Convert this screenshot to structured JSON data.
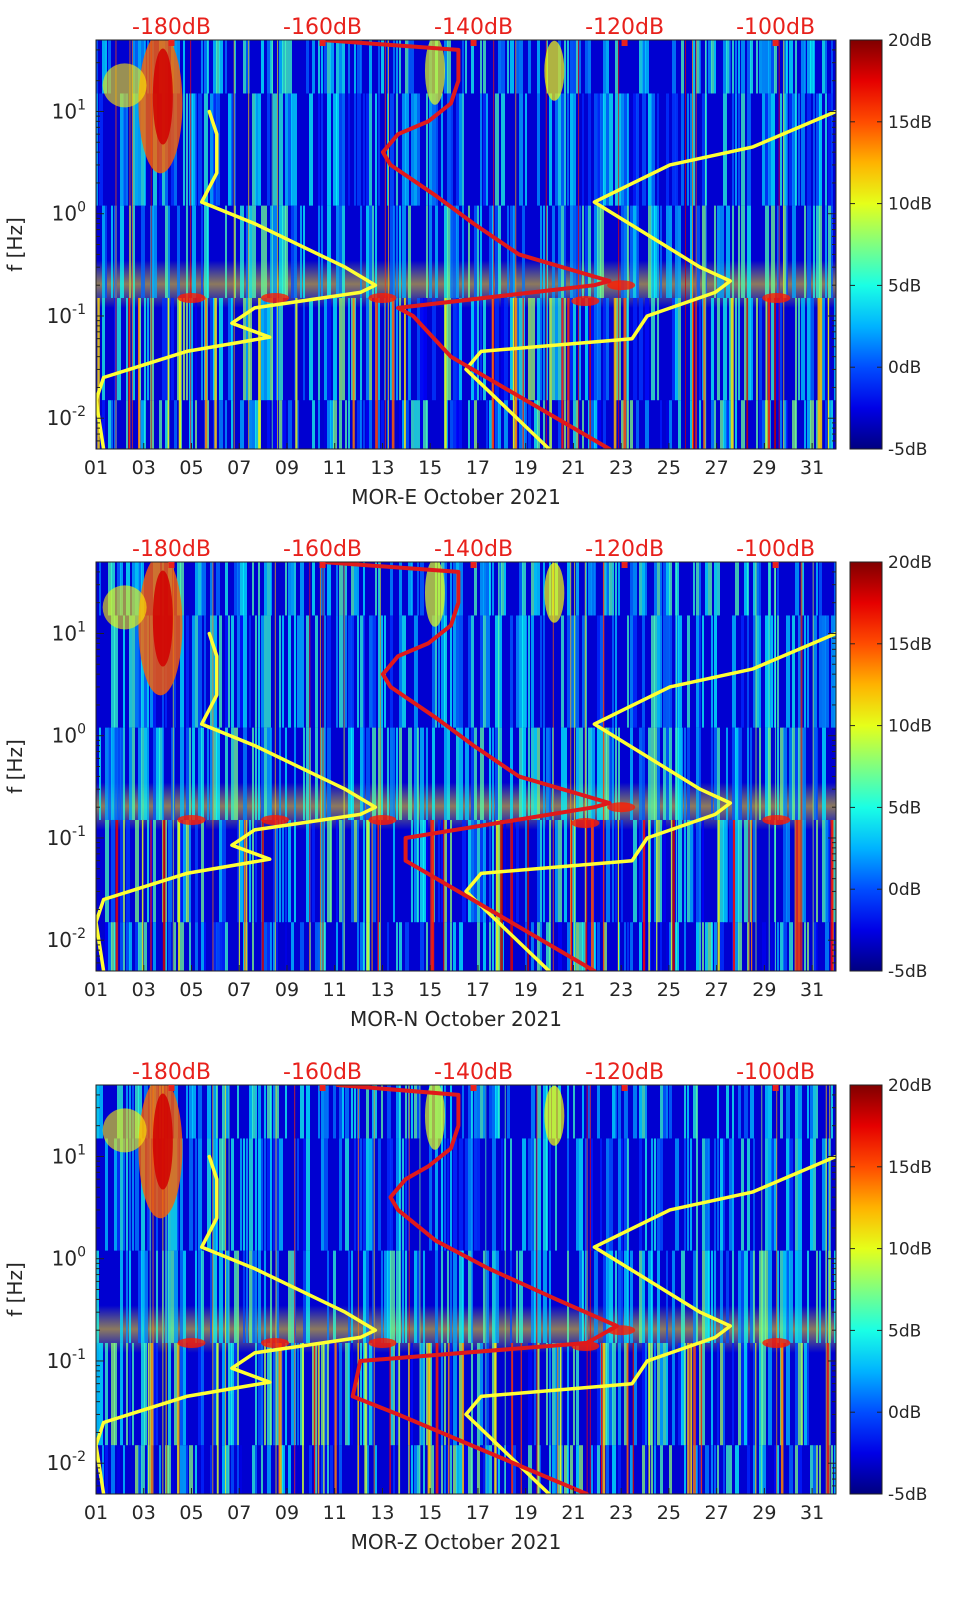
{
  "chart_data": [
    {
      "type": "heatmap",
      "title": "",
      "xlabel": "MOR-E October 2021",
      "ylabel": "f [Hz]",
      "x_ticks": [
        "01",
        "03",
        "05",
        "07",
        "09",
        "11",
        "13",
        "15",
        "17",
        "19",
        "21",
        "23",
        "25",
        "27",
        "29",
        "31"
      ],
      "xlim": [
        1,
        32
      ],
      "yscale": "log",
      "ylim": [
        0.005,
        50
      ],
      "y_ticks": [
        {
          "value": 0.01,
          "base": "10",
          "exp": "-2"
        },
        {
          "value": 0.1,
          "base": "10",
          "exp": "-1"
        },
        {
          "value": 1,
          "base": "10",
          "exp": "0"
        },
        {
          "value": 10,
          "base": "10",
          "exp": "1"
        }
      ],
      "colorbar": {
        "range": [
          -5,
          20
        ],
        "ticks": [
          "20dB",
          "15dB",
          "10dB",
          "5dB",
          "0dB",
          "-5dB"
        ]
      },
      "top_axis": {
        "label_color": "#e8211c",
        "ticks": [
          "-180dB",
          "-160dB",
          "-140dB",
          "-120dB",
          "-100dB"
        ],
        "range": [
          -190,
          -92
        ]
      },
      "series": [
        {
          "name": "yellow-low-noise-model",
          "color": "#ffff33",
          "points": [
            [
              -189,
              0.005
            ],
            [
              -190,
              0.015
            ],
            [
              -189,
              0.025
            ],
            [
              -178,
              0.045
            ],
            [
              -167,
              0.062
            ],
            [
              -172,
              0.085
            ],
            [
              -169,
              0.12
            ],
            [
              -155,
              0.17
            ],
            [
              -153,
              0.2
            ],
            [
              -157,
              0.3
            ],
            [
              -169,
              0.8
            ],
            [
              -176,
              1.3
            ],
            [
              -174,
              2.5
            ],
            [
              -174,
              6
            ],
            [
              -175,
              10
            ]
          ]
        },
        {
          "name": "yellow-high-noise-model",
          "color": "#ffff33",
          "points": [
            [
              -130,
              0.005
            ],
            [
              -141,
              0.03
            ],
            [
              -139,
              0.045
            ],
            [
              -119,
              0.06
            ],
            [
              -117,
              0.1
            ],
            [
              -108,
              0.17
            ],
            [
              -106,
              0.22
            ],
            [
              -110,
              0.3
            ],
            [
              -124,
              1.3
            ],
            [
              -114,
              3
            ],
            [
              -103,
              4.5
            ],
            [
              -92,
              10
            ]
          ]
        },
        {
          "name": "red-station-noise-curve",
          "color": "#e0191b",
          "points": [
            [
              -122,
              0.005
            ],
            [
              -143,
              0.04
            ],
            [
              -148,
              0.1
            ],
            [
              -150,
              0.12
            ],
            [
              -124,
              0.2
            ],
            [
              -122,
              0.22
            ],
            [
              -134,
              0.4
            ],
            [
              -140,
              0.8
            ],
            [
              -145,
              1.5
            ],
            [
              -151,
              3
            ],
            [
              -152,
              4
            ],
            [
              -150,
              6
            ],
            [
              -146,
              8
            ],
            [
              -143,
              12
            ],
            [
              -142,
              20
            ],
            [
              -142,
              40
            ],
            [
              -160,
              50
            ]
          ]
        }
      ]
    },
    {
      "type": "heatmap",
      "title": "",
      "xlabel": "MOR-N October 2021",
      "ylabel": "f [Hz]",
      "x_ticks": [
        "01",
        "03",
        "05",
        "07",
        "09",
        "11",
        "13",
        "15",
        "17",
        "19",
        "21",
        "23",
        "25",
        "27",
        "29",
        "31"
      ],
      "xlim": [
        1,
        32
      ],
      "yscale": "log",
      "ylim": [
        0.005,
        50
      ],
      "y_ticks": [
        {
          "value": 0.01,
          "base": "10",
          "exp": "-2"
        },
        {
          "value": 0.1,
          "base": "10",
          "exp": "-1"
        },
        {
          "value": 1,
          "base": "10",
          "exp": "0"
        },
        {
          "value": 10,
          "base": "10",
          "exp": "1"
        }
      ],
      "colorbar": {
        "range": [
          -5,
          20
        ],
        "ticks": [
          "20dB",
          "15dB",
          "10dB",
          "5dB",
          "0dB",
          "-5dB"
        ]
      },
      "top_axis": {
        "label_color": "#e8211c",
        "ticks": [
          "-180dB",
          "-160dB",
          "-140dB",
          "-120dB",
          "-100dB"
        ],
        "range": [
          -190,
          -92
        ]
      },
      "series": [
        {
          "name": "yellow-low-noise-model",
          "color": "#ffff33",
          "points": [
            [
              -189,
              0.005
            ],
            [
              -190,
              0.015
            ],
            [
              -189,
              0.025
            ],
            [
              -178,
              0.045
            ],
            [
              -167,
              0.062
            ],
            [
              -172,
              0.085
            ],
            [
              -169,
              0.12
            ],
            [
              -155,
              0.17
            ],
            [
              -153,
              0.2
            ],
            [
              -157,
              0.3
            ],
            [
              -169,
              0.8
            ],
            [
              -176,
              1.3
            ],
            [
              -174,
              2.5
            ],
            [
              -174,
              6
            ],
            [
              -175,
              10
            ]
          ]
        },
        {
          "name": "yellow-high-noise-model",
          "color": "#ffff33",
          "points": [
            [
              -130,
              0.005
            ],
            [
              -141,
              0.03
            ],
            [
              -139,
              0.045
            ],
            [
              -119,
              0.06
            ],
            [
              -117,
              0.1
            ],
            [
              -108,
              0.17
            ],
            [
              -106,
              0.22
            ],
            [
              -110,
              0.3
            ],
            [
              -124,
              1.3
            ],
            [
              -114,
              3
            ],
            [
              -103,
              4.5
            ],
            [
              -92,
              10
            ]
          ]
        },
        {
          "name": "red-station-noise-curve",
          "color": "#e0191b",
          "points": [
            [
              -124,
              0.005
            ],
            [
              -142,
              0.03
            ],
            [
              -149,
              0.06
            ],
            [
              -149,
              0.1
            ],
            [
              -124,
              0.2
            ],
            [
              -122,
              0.22
            ],
            [
              -134,
              0.4
            ],
            [
              -140,
              0.8
            ],
            [
              -145,
              1.5
            ],
            [
              -151,
              3
            ],
            [
              -152,
              4
            ],
            [
              -150,
              6
            ],
            [
              -146,
              8
            ],
            [
              -143,
              12
            ],
            [
              -142,
              20
            ],
            [
              -142,
              40
            ],
            [
              -160,
              50
            ]
          ]
        }
      ]
    },
    {
      "type": "heatmap",
      "title": "",
      "xlabel": "MOR-Z October 2021",
      "ylabel": "f [Hz]",
      "x_ticks": [
        "01",
        "03",
        "05",
        "07",
        "09",
        "11",
        "13",
        "15",
        "17",
        "19",
        "21",
        "23",
        "25",
        "27",
        "29",
        "31"
      ],
      "xlim": [
        1,
        32
      ],
      "yscale": "log",
      "ylim": [
        0.005,
        50
      ],
      "y_ticks": [
        {
          "value": 0.01,
          "base": "10",
          "exp": "-2"
        },
        {
          "value": 0.1,
          "base": "10",
          "exp": "-1"
        },
        {
          "value": 1,
          "base": "10",
          "exp": "0"
        },
        {
          "value": 10,
          "base": "10",
          "exp": "1"
        }
      ],
      "colorbar": {
        "range": [
          -5,
          20
        ],
        "ticks": [
          "20dB",
          "15dB",
          "10dB",
          "5dB",
          "0dB",
          "-5dB"
        ]
      },
      "top_axis": {
        "label_color": "#e8211c",
        "ticks": [
          "-180dB",
          "-160dB",
          "-140dB",
          "-120dB",
          "-100dB"
        ],
        "range": [
          -190,
          -92
        ]
      },
      "series": [
        {
          "name": "yellow-low-noise-model",
          "color": "#ffff33",
          "points": [
            [
              -189,
              0.005
            ],
            [
              -190,
              0.015
            ],
            [
              -189,
              0.025
            ],
            [
              -178,
              0.045
            ],
            [
              -167,
              0.062
            ],
            [
              -172,
              0.085
            ],
            [
              -169,
              0.12
            ],
            [
              -155,
              0.17
            ],
            [
              -153,
              0.2
            ],
            [
              -157,
              0.3
            ],
            [
              -169,
              0.8
            ],
            [
              -176,
              1.3
            ],
            [
              -174,
              2.5
            ],
            [
              -174,
              6
            ],
            [
              -175,
              10
            ]
          ]
        },
        {
          "name": "yellow-high-noise-model",
          "color": "#ffff33",
          "points": [
            [
              -130,
              0.005
            ],
            [
              -141,
              0.03
            ],
            [
              -139,
              0.045
            ],
            [
              -119,
              0.06
            ],
            [
              -117,
              0.1
            ],
            [
              -108,
              0.17
            ],
            [
              -106,
              0.22
            ],
            [
              -110,
              0.3
            ],
            [
              -124,
              1.3
            ],
            [
              -114,
              3
            ],
            [
              -103,
              4.5
            ],
            [
              -92,
              10
            ]
          ]
        },
        {
          "name": "red-station-noise-curve",
          "color": "#e0191b",
          "points": [
            [
              -125,
              0.005
            ],
            [
              -150,
              0.03
            ],
            [
              -156,
              0.045
            ],
            [
              -155,
              0.1
            ],
            [
              -125,
              0.15
            ],
            [
              -121,
              0.22
            ],
            [
              -129,
              0.4
            ],
            [
              -138,
              0.8
            ],
            [
              -145,
              1.5
            ],
            [
              -150,
              3
            ],
            [
              -151,
              4
            ],
            [
              -149,
              6
            ],
            [
              -146,
              8
            ],
            [
              -143,
              12
            ],
            [
              -142,
              20
            ],
            [
              -142,
              40
            ],
            [
              -158,
              50
            ]
          ]
        }
      ]
    }
  ]
}
